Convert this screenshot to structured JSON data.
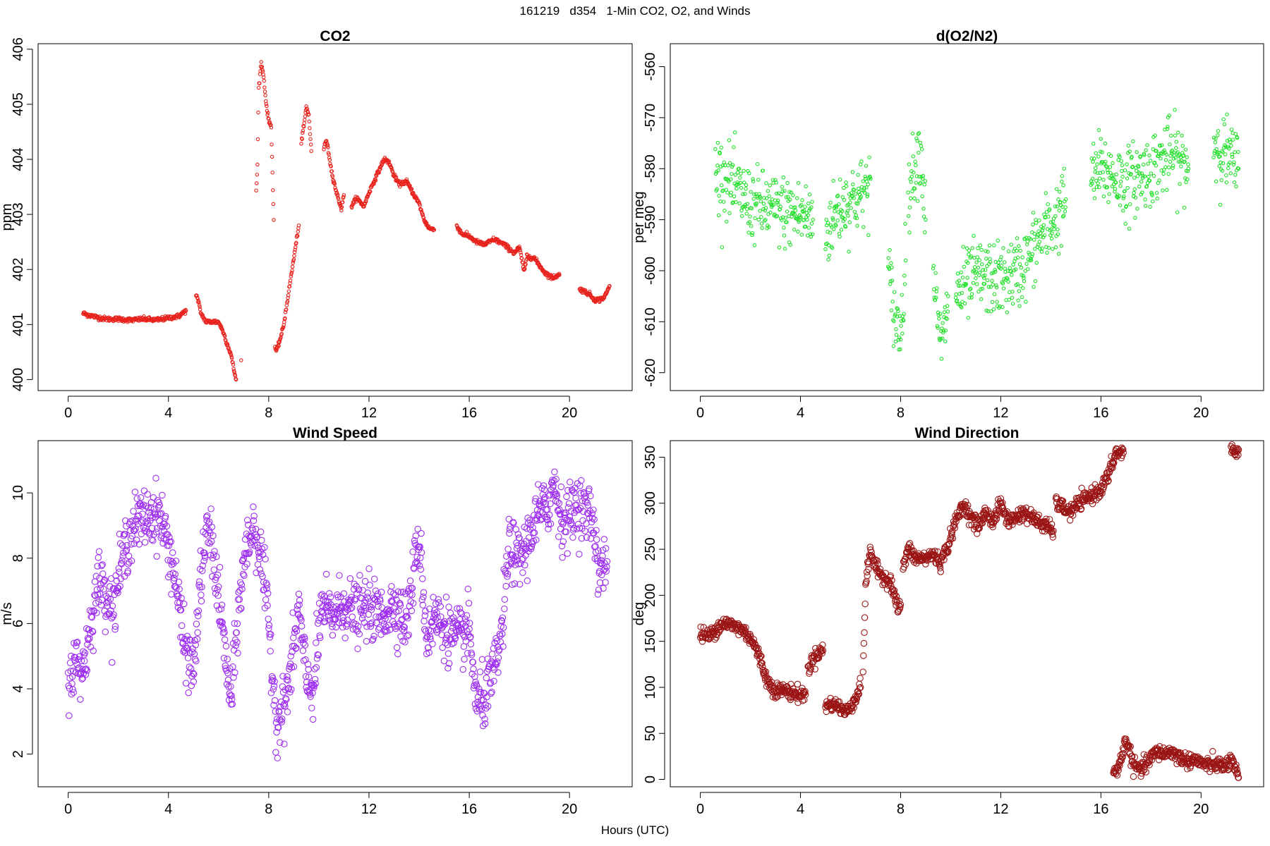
{
  "page": {
    "title": "161219   d354   1-Min CO2, O2, and Winds",
    "xlabel": "Hours (UTC)"
  },
  "chart_data": [
    {
      "id": "co2",
      "type": "scatter",
      "title": "CO2",
      "xlabel": "",
      "ylabel": "ppm",
      "xlim": [
        -1.2,
        22.5
      ],
      "ylim": [
        399.8,
        406.1
      ],
      "xticks": [
        0,
        4,
        8,
        12,
        16,
        20
      ],
      "yticks": [
        400,
        401,
        402,
        403,
        404,
        405,
        406
      ],
      "color": "#e8231d",
      "marker": "small-open-circle",
      "segments": [
        {
          "x": [
            0.6,
            1.0,
            1.5,
            2.0,
            2.5,
            3.0,
            3.5,
            4.0,
            4.4,
            4.7
          ],
          "y": [
            401.2,
            401.15,
            401.1,
            401.1,
            401.08,
            401.1,
            401.08,
            401.12,
            401.15,
            401.25
          ]
        },
        {
          "x": [
            5.1,
            5.2,
            5.3,
            5.5,
            5.8,
            6.0,
            6.1,
            6.2,
            6.3,
            6.5,
            6.6,
            6.7
          ],
          "y": [
            401.55,
            401.4,
            401.2,
            401.05,
            401.05,
            401.05,
            400.95,
            400.85,
            400.7,
            400.45,
            400.2,
            400.0
          ]
        },
        {
          "x": [
            6.9
          ],
          "y": [
            400.35
          ]
        },
        {
          "x": [
            7.5,
            7.55,
            7.6,
            7.7,
            7.8,
            7.9,
            8.0,
            8.1,
            8.2
          ],
          "y": [
            403.4,
            403.9,
            405.3,
            405.75,
            405.5,
            405.0,
            404.7,
            404.6,
            402.9
          ]
        },
        {
          "x": [
            8.25,
            8.3,
            8.4,
            8.5,
            8.6,
            8.7,
            8.8,
            8.9,
            9.0,
            9.1,
            9.2
          ],
          "y": [
            400.6,
            400.5,
            400.65,
            400.8,
            401.0,
            401.3,
            401.6,
            401.9,
            402.2,
            402.5,
            402.8
          ]
        },
        {
          "x": [
            9.3,
            9.4,
            9.5,
            9.6,
            9.7
          ],
          "y": [
            404.3,
            404.6,
            404.95,
            404.8,
            404.15
          ]
        },
        {
          "x": [
            10.2,
            10.3,
            10.4,
            10.5,
            10.7,
            10.9,
            11.0
          ],
          "y": [
            404.2,
            404.35,
            404.1,
            403.8,
            403.4,
            403.1,
            403.35
          ]
        },
        {
          "x": [
            11.3,
            11.5,
            11.8,
            12.0,
            12.3,
            12.6,
            12.8,
            13.0,
            13.2,
            13.5,
            13.8,
            14.0,
            14.2,
            14.4,
            14.6
          ],
          "y": [
            403.15,
            403.3,
            403.15,
            403.4,
            403.7,
            404.0,
            403.95,
            403.7,
            403.55,
            403.6,
            403.35,
            403.2,
            402.9,
            402.75,
            402.72
          ]
        },
        {
          "x": [
            15.5,
            15.7,
            16.0,
            16.3,
            16.6,
            17.0,
            17.4,
            17.8,
            18.0,
            18.2,
            18.3,
            18.6,
            19.0,
            19.3,
            19.6
          ],
          "y": [
            402.8,
            402.65,
            402.6,
            402.5,
            402.45,
            402.55,
            402.45,
            402.3,
            402.4,
            401.95,
            402.25,
            402.2,
            401.95,
            401.85,
            401.9
          ]
        },
        {
          "x": [
            20.4,
            20.6,
            20.8,
            21.0,
            21.2,
            21.4,
            21.6
          ],
          "y": [
            401.65,
            401.6,
            401.55,
            401.45,
            401.45,
            401.5,
            401.7
          ]
        }
      ]
    },
    {
      "id": "o2n2",
      "type": "scatter",
      "title": "d(O2/N2)",
      "xlabel": "",
      "ylabel": "per meg",
      "xlim": [
        -1.2,
        22.5
      ],
      "ylim": [
        -623.5,
        -555.5
      ],
      "xticks": [
        0,
        4,
        8,
        12,
        16,
        20
      ],
      "yticks": [
        -620,
        -610,
        -600,
        -590,
        -580,
        -570,
        -560
      ],
      "color": "#22e02a",
      "marker": "small-open-circle",
      "segments": [
        {
          "x": [
            0.6,
            1.2,
            2.0,
            3.0,
            4.0,
            4.5
          ],
          "y": [
            -580,
            -583,
            -587,
            -588,
            -589,
            -590
          ]
        },
        {
          "x": [
            5.0,
            5.5,
            6.0,
            6.5,
            6.8
          ],
          "y": [
            -593,
            -588,
            -586,
            -585,
            -582
          ]
        },
        {
          "x": [
            7.5,
            7.8,
            8.0,
            8.2
          ],
          "y": [
            -600,
            -610,
            -612,
            -598
          ]
        },
        {
          "x": [
            8.3,
            8.6,
            8.8,
            9.0
          ],
          "y": [
            -585,
            -578,
            -576,
            -590
          ]
        },
        {
          "x": [
            9.3,
            9.5,
            9.7,
            9.9
          ],
          "y": [
            -598,
            -612,
            -614,
            -605
          ]
        },
        {
          "x": [
            10.2,
            11.0,
            12.0,
            12.8,
            13.5,
            14.2,
            14.6
          ],
          "y": [
            -605,
            -601,
            -602,
            -600,
            -594,
            -590,
            -586
          ]
        },
        {
          "x": [
            15.6,
            16.0,
            17.0,
            18.0,
            18.8,
            19.5
          ],
          "y": [
            -582,
            -580,
            -583,
            -580,
            -577,
            -580
          ]
        },
        {
          "x": [
            20.5,
            21.0,
            21.5
          ],
          "y": [
            -575,
            -577,
            -580
          ]
        }
      ]
    },
    {
      "id": "wind-speed",
      "type": "scatter",
      "title": "Wind Speed",
      "xlabel": "",
      "ylabel": "m/s",
      "xlim": [
        -1.2,
        22.5
      ],
      "ylim": [
        1.0,
        11.6
      ],
      "xticks": [
        0,
        4,
        8,
        12,
        16,
        20
      ],
      "yticks": [
        2,
        4,
        6,
        8,
        10
      ],
      "color": "#9d2ef0",
      "marker": "open-circle",
      "segments": [
        {
          "x": [
            0.0,
            0.3,
            0.6,
            0.9,
            1.2,
            1.5,
            1.8,
            2.0,
            2.3,
            2.6,
            3.0,
            3.3,
            3.6,
            4.0,
            4.3,
            4.6,
            5.0,
            5.3,
            5.6,
            5.9,
            6.2,
            6.5,
            6.8,
            7.1,
            7.4,
            7.7,
            8.0,
            8.3,
            8.6,
            8.9,
            9.2,
            9.5,
            9.8,
            10.1,
            10.5,
            11.0,
            11.5,
            12.0,
            12.5,
            13.0,
            13.5,
            14.0,
            14.3,
            14.6,
            15.0,
            15.5,
            16.0,
            16.3,
            16.6,
            17.0,
            17.3,
            17.6,
            17.9,
            18.2,
            18.5,
            18.8,
            19.1,
            19.4,
            19.7,
            20.0,
            20.3,
            20.6,
            20.9,
            21.2,
            21.5
          ],
          "y": [
            4.3,
            4.8,
            4.6,
            6.0,
            7.3,
            7.0,
            6.4,
            7.4,
            8.4,
            9.0,
            9.2,
            9.3,
            9.4,
            8.4,
            7.3,
            5.4,
            4.5,
            7.5,
            9.0,
            7.5,
            5.5,
            3.5,
            6.5,
            8.3,
            9.0,
            8.0,
            6.0,
            3.0,
            3.4,
            4.6,
            6.5,
            4.2,
            4.0,
            6.5,
            6.2,
            6.6,
            6.3,
            6.5,
            6.2,
            6.6,
            6.0,
            8.7,
            5.5,
            6.2,
            5.9,
            5.5,
            5.8,
            3.5,
            3.7,
            4.5,
            5.7,
            8.5,
            7.9,
            8.2,
            8.9,
            9.4,
            9.5,
            10.3,
            9.1,
            9.3,
            9.7,
            9.4,
            9.3,
            7.6,
            7.9
          ]
        }
      ]
    },
    {
      "id": "wind-direction",
      "type": "scatter",
      "title": "Wind Direction",
      "xlabel": "",
      "ylabel": "deg",
      "xlim": [
        -1.2,
        22.5
      ],
      "ylim": [
        -8,
        368
      ],
      "xticks": [
        0,
        4,
        8,
        12,
        16,
        20
      ],
      "yticks": [
        0,
        50,
        100,
        150,
        200,
        250,
        300,
        350
      ],
      "color": "#9b1515",
      "marker": "open-circle",
      "segments": [
        {
          "x": [
            0.0,
            0.3,
            0.6,
            0.9,
            1.2,
            1.5,
            1.8,
            2.1,
            2.4,
            2.7,
            3.0,
            3.3,
            3.6,
            3.9,
            4.2
          ],
          "y": [
            158,
            155,
            163,
            170,
            168,
            165,
            160,
            150,
            130,
            105,
            97,
            97,
            95,
            92,
            92
          ]
        },
        {
          "x": [
            4.3,
            4.5,
            4.7,
            4.9
          ],
          "y": [
            120,
            130,
            138,
            140
          ]
        },
        {
          "x": [
            5.0,
            5.3,
            5.6,
            5.8,
            6.0,
            6.2,
            6.4
          ],
          "y": [
            80,
            82,
            78,
            72,
            80,
            88,
            100
          ]
        },
        {
          "x": [
            6.5,
            6.6,
            6.8,
            7.0,
            7.3,
            7.6,
            7.9,
            8.0
          ],
          "y": [
            120,
            210,
            250,
            230,
            220,
            215,
            185,
            190
          ]
        },
        {
          "x": [
            8.1,
            8.3,
            8.6,
            9.0,
            9.3,
            9.6,
            9.9,
            10.2,
            10.5,
            10.8,
            11.1,
            11.4,
            11.7,
            12.0,
            12.3,
            12.6,
            12.9,
            13.2,
            13.5,
            13.8,
            14.1
          ],
          "y": [
            230,
            250,
            240,
            240,
            245,
            235,
            255,
            280,
            300,
            285,
            275,
            290,
            280,
            300,
            280,
            285,
            290,
            285,
            280,
            275,
            270
          ]
        },
        {
          "x": [
            14.2,
            14.5,
            14.8,
            15.1,
            15.4,
            15.7,
            16.0,
            16.3,
            16.6,
            16.9
          ],
          "y": [
            300,
            295,
            290,
            300,
            305,
            310,
            315,
            330,
            355,
            355
          ]
        },
        {
          "x": [
            16.5,
            16.8,
            17.0,
            17.3,
            17.6,
            17.9,
            18.2,
            18.5,
            18.8,
            19.1,
            19.4,
            19.7,
            20.0,
            20.3,
            20.6,
            20.9,
            21.2,
            21.5
          ],
          "y": [
            5,
            20,
            45,
            15,
            10,
            20,
            30,
            28,
            30,
            25,
            20,
            22,
            18,
            15,
            17,
            14,
            20,
            2
          ]
        },
        {
          "x": [
            21.2,
            21.3,
            21.4,
            21.5
          ],
          "y": [
            357,
            355,
            357,
            358
          ]
        }
      ]
    }
  ]
}
